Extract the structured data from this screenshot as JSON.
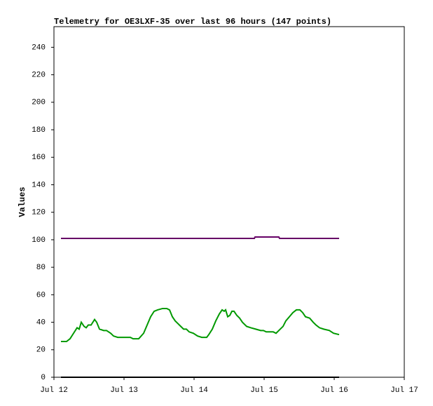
{
  "chart_data": {
    "type": "line",
    "title": "Telemetry for OE3LXF-35 over last 96 hours (147 points)",
    "y_label": "Values",
    "xlim": [
      0,
      5
    ],
    "xticks": [
      {
        "value": 0,
        "label": "Jul 12"
      },
      {
        "value": 1,
        "label": "Jul 13"
      },
      {
        "value": 2,
        "label": "Jul 14"
      },
      {
        "value": 3,
        "label": "Jul 15"
      },
      {
        "value": 4,
        "label": "Jul 16"
      },
      {
        "value": 5,
        "label": "Jul 17"
      }
    ],
    "ylim": [
      0,
      255
    ],
    "yticks": [
      0,
      20,
      40,
      60,
      80,
      100,
      120,
      140,
      160,
      180,
      200,
      220,
      240
    ],
    "series": [
      {
        "color": "#660066",
        "x": [
          0.1,
          2.86,
          2.87,
          3.21,
          3.22,
          4.07
        ],
        "values": [
          101,
          101,
          102,
          102,
          101,
          101
        ]
      },
      {
        "color": "#009900",
        "x": [
          0.1,
          0.18,
          0.23,
          0.28,
          0.33,
          0.36,
          0.39,
          0.43,
          0.46,
          0.49,
          0.53,
          0.58,
          0.61,
          0.65,
          0.71,
          0.75,
          0.81,
          0.85,
          0.91,
          1.01,
          1.09,
          1.13,
          1.21,
          1.28,
          1.33,
          1.38,
          1.43,
          1.48,
          1.55,
          1.61,
          1.65,
          1.69,
          1.73,
          1.79,
          1.85,
          1.89,
          1.93,
          1.99,
          2.05,
          2.11,
          2.18,
          2.21,
          2.26,
          2.31,
          2.36,
          2.4,
          2.43,
          2.45,
          2.48,
          2.51,
          2.54,
          2.57,
          2.61,
          2.65,
          2.69,
          2.75,
          2.81,
          2.88,
          2.95,
          2.99,
          3.03,
          3.09,
          3.13,
          3.17,
          3.21,
          3.27,
          3.31,
          3.36,
          3.41,
          3.46,
          3.51,
          3.55,
          3.59,
          3.65,
          3.7,
          3.74,
          3.79,
          3.85,
          3.93,
          3.99,
          4.07
        ],
        "values": [
          26,
          26,
          28,
          32,
          36,
          35,
          40,
          37,
          36,
          38,
          38,
          42,
          40,
          35,
          34,
          34,
          32,
          30,
          29,
          29,
          29,
          28,
          28,
          32,
          38,
          44,
          48,
          49,
          50,
          50,
          49,
          44,
          41,
          38,
          35,
          35,
          33,
          32,
          30,
          29,
          29,
          31,
          35,
          41,
          46,
          49,
          48,
          49,
          44,
          45,
          48,
          48,
          45,
          43,
          40,
          37,
          36,
          35,
          34,
          34,
          33,
          33,
          33,
          32,
          34,
          37,
          41,
          44,
          47,
          49,
          49,
          47,
          44,
          43,
          40,
          38,
          36,
          35,
          34,
          32,
          31
        ]
      },
      {
        "color": "#000000",
        "x": [
          0.1,
          4.07
        ],
        "values": [
          0,
          0
        ]
      }
    ]
  }
}
